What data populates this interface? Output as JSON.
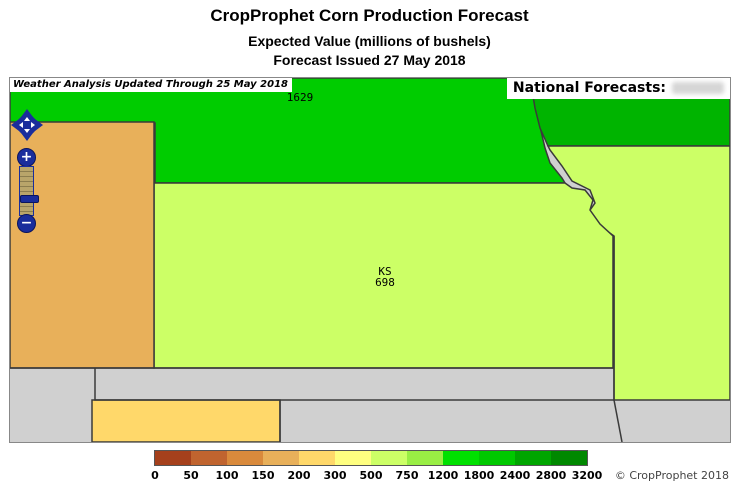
{
  "header": {
    "title": "CropProphet Corn Production Forecast",
    "subtitle": "Expected Value (millions of bushels)",
    "issued": "Forecast Issued 27 May 2018"
  },
  "map": {
    "weather_note": "Weather Analysis Updated Through 25 May 2018",
    "national_label": "National Forecasts:",
    "states": [
      {
        "abbr": "",
        "value": "1629"
      },
      {
        "abbr": "KS",
        "value": "698"
      }
    ],
    "controls": {
      "pan_icon": "pan-arrows-icon",
      "zoom_in": "+",
      "zoom_out": "−"
    }
  },
  "legend": {
    "ticks": [
      "0",
      "50",
      "100",
      "150",
      "200",
      "300",
      "500",
      "750",
      "1200",
      "1800",
      "2400",
      "2800",
      "3200"
    ],
    "colors": [
      "#a5401c",
      "#c0642f",
      "#d98a3c",
      "#e8b05a",
      "#ffd86a",
      "#ffff80",
      "#ccff66",
      "#99ee44",
      "#00e000",
      "#00c800",
      "#00a500",
      "#008800"
    ]
  },
  "copyright": "© CropProphet 2018",
  "colors": {
    "no_data": "#d0d0d0",
    "nebraska": "#00cc00",
    "iowa": "#00b400",
    "kansas": "#ccff66",
    "colorado": "#e8b05a",
    "oklahoma_panhandle": "#ffd86a",
    "missouri": "#ccff66",
    "border": "#3a3a3a",
    "control_blue": "#1a2d9c"
  }
}
